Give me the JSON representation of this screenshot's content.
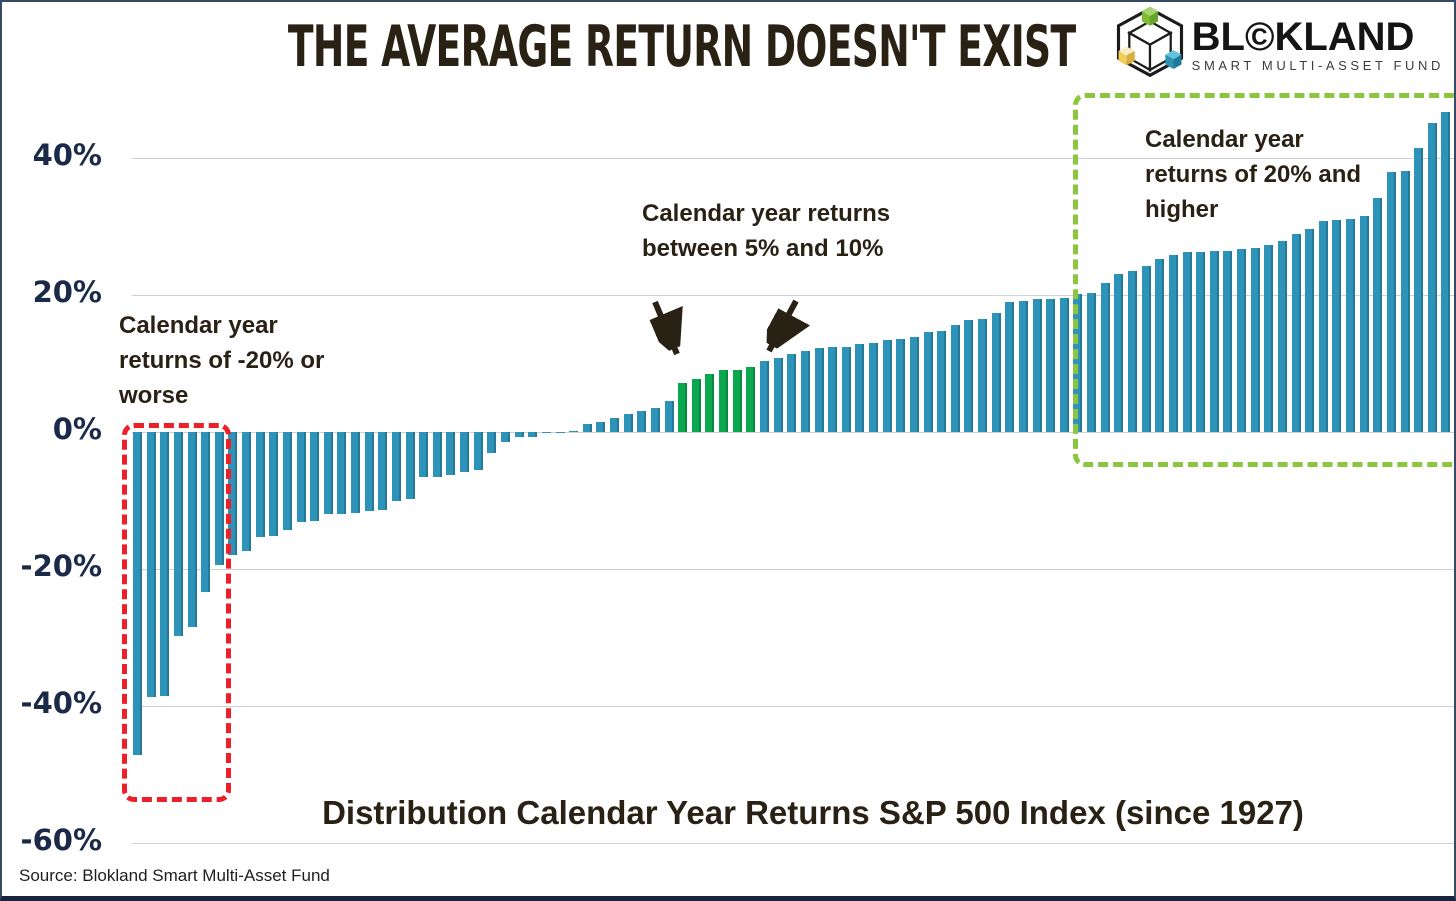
{
  "page": {
    "title": "THE AVERAGE RETURN DOESN'T EXIST",
    "source_note": "Source: Blokland Smart Multi-Asset Fund"
  },
  "logo": {
    "brand": "BL©KLAND",
    "tagline": "SMART MULTI-ASSET FUND",
    "icon": "blokland-hexagon-cubes-icon",
    "colors": {
      "green": "#7dbc34",
      "yellow": "#f3ce57",
      "blue": "#2d93b5",
      "outline": "#1b1b1b"
    }
  },
  "annotations": {
    "worst": "Calendar year returns of -20% or worse",
    "mid": "Calendar year returns between 5% and 10%",
    "best": "Calendar year returns of 20% and higher"
  },
  "chart_data": {
    "type": "bar",
    "title": "Distribution Calendar Year Returns S&P 500 Index (since 1927)",
    "description": "Calendar year returns of the S&P 500 Index since 1927, sorted ascending",
    "y_ticks": [
      "40%",
      "20%",
      "0%",
      "-20%",
      "-40%",
      "-60%"
    ],
    "y_tick_values": [
      40,
      20,
      0,
      -20,
      -40,
      -60
    ],
    "ylim": [
      -60,
      48
    ],
    "grid": true,
    "values": [
      -47.1,
      -38.6,
      -38.5,
      -29.7,
      -28.5,
      -23.4,
      -19.4,
      -17.9,
      -17.4,
      -15.3,
      -15.1,
      -14.3,
      -13.1,
      -13.0,
      -11.9,
      -11.9,
      -11.8,
      -11.5,
      -11.4,
      -10.1,
      -9.7,
      -6.6,
      -6.6,
      -6.2,
      -5.9,
      -5.5,
      -3.0,
      -1.5,
      -0.7,
      -0.7,
      0.0,
      0.0,
      0.1,
      1.1,
      1.4,
      2.0,
      2.6,
      3.0,
      3.5,
      4.5,
      7.1,
      7.7,
      8.5,
      9.0,
      9.1,
      9.5,
      10.3,
      10.8,
      11.4,
      11.8,
      12.3,
      12.4,
      12.4,
      12.8,
      13.0,
      13.4,
      13.6,
      13.8,
      14.6,
      14.8,
      15.6,
      16.3,
      16.5,
      17.3,
      18.9,
      19.1,
      19.4,
      19.4,
      19.5,
      20.1,
      20.3,
      21.8,
      23.1,
      23.5,
      24.2,
      25.2,
      25.8,
      26.3,
      26.3,
      26.4,
      26.4,
      26.7,
      26.9,
      27.3,
      27.9,
      28.9,
      29.6,
      30.7,
      30.9,
      31.0,
      31.5,
      34.1,
      37.9,
      38.1,
      41.4,
      45.0,
      46.6
    ],
    "highlight_green_range": [
      5,
      10
    ],
    "colors": {
      "bar": "#2e93b8",
      "highlight_bar": "#0ca84f",
      "worst_box": "#eb2028",
      "best_box": "#8cc63e"
    }
  }
}
